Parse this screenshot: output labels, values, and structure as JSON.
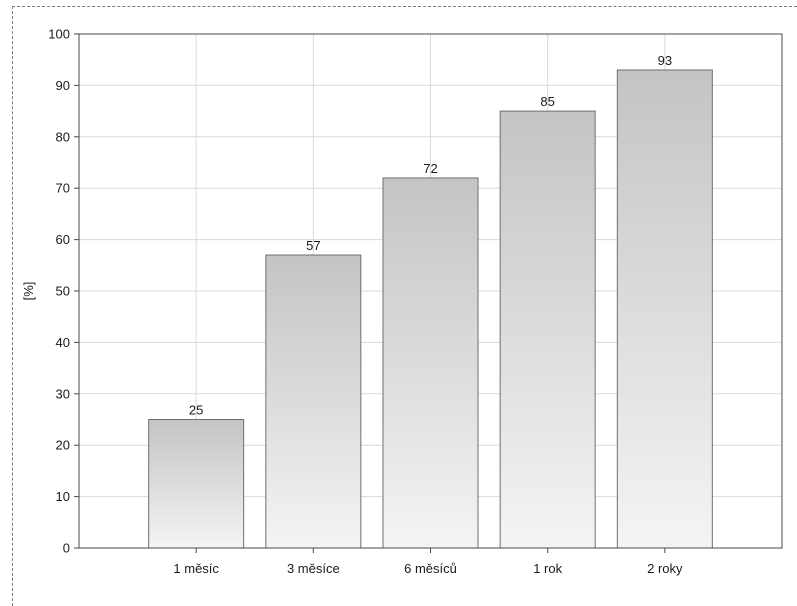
{
  "chart_data": {
    "type": "bar",
    "title": "",
    "xlabel": "",
    "ylabel": "[%]",
    "categories": [
      "1 měsíc",
      "3 měsíce",
      "6 měsíců",
      "1 rok",
      "2 roky"
    ],
    "values": [
      25,
      57,
      72,
      85,
      93
    ],
    "data_labels": [
      "25",
      "57",
      "72",
      "85",
      "93"
    ],
    "ylim": [
      0,
      100
    ],
    "yticks": [
      0,
      10,
      20,
      30,
      40,
      50,
      60,
      70,
      80,
      90,
      100
    ],
    "grid": true,
    "legend": "none",
    "colors": {
      "bar_top": "#c4c4c4",
      "bar_bottom": "#f4f4f4",
      "bar_stroke": "#6f6f6f",
      "grid": "#d9d9d9",
      "axis": "#4a4a4a"
    }
  }
}
